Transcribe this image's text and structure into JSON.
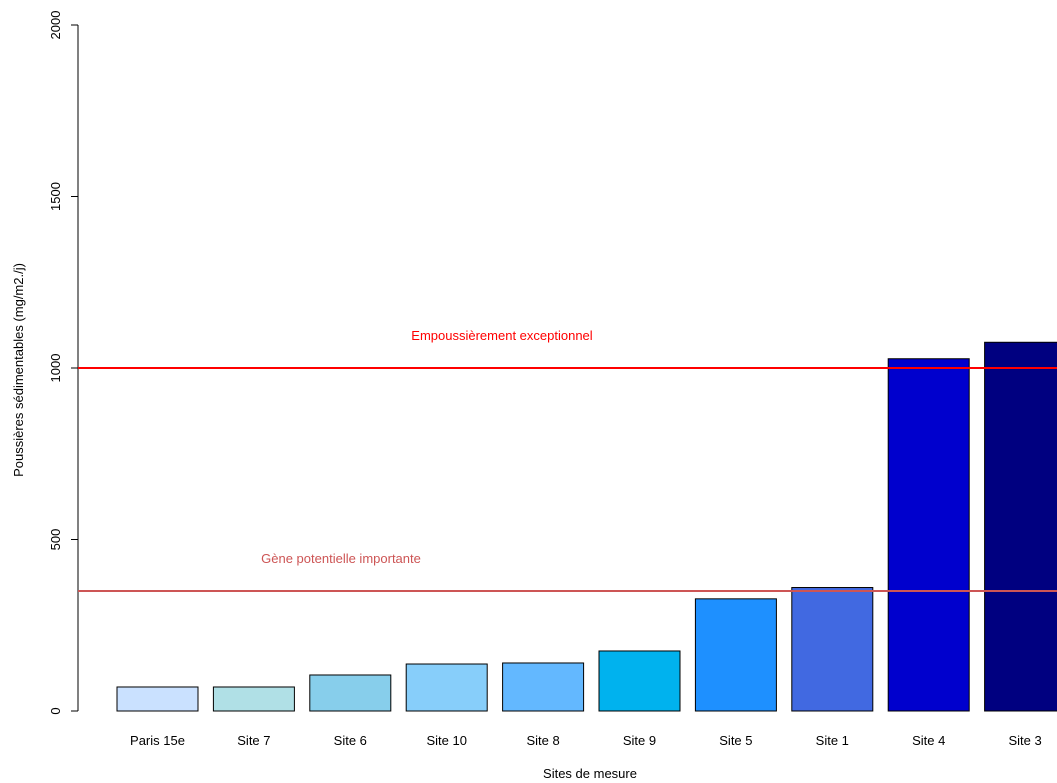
{
  "chart_data": {
    "type": "bar",
    "title": "",
    "xlabel": "Sites de mesure",
    "ylabel": "Poussières sédimentables (mg/m2./j)",
    "ylim": [
      0,
      2000
    ],
    "yticks": [
      0,
      500,
      1000,
      1500,
      2000
    ],
    "grid": false,
    "categories": [
      "Paris 15e",
      "Site 7",
      "Site 6",
      "Site 10",
      "Site 8",
      "Site 9",
      "Site 5",
      "Site 1",
      "Site 4",
      "Site 3"
    ],
    "values": [
      70,
      70,
      105,
      137,
      140,
      175,
      327,
      360,
      1027,
      1075
    ],
    "colors": [
      "#cae1ff",
      "#b0e0e6",
      "#87ceeb",
      "#87cefa",
      "#63b8ff",
      "#00b2ee",
      "#1e90ff",
      "#4169e1",
      "#0000cd",
      "#000080"
    ],
    "reference_lines": [
      {
        "value": 1000,
        "label": "Empoussièrement exceptionnel",
        "color": "#ff0000"
      },
      {
        "value": 350,
        "label": "Gène potentielle importante",
        "color": "#cd5555"
      }
    ]
  }
}
